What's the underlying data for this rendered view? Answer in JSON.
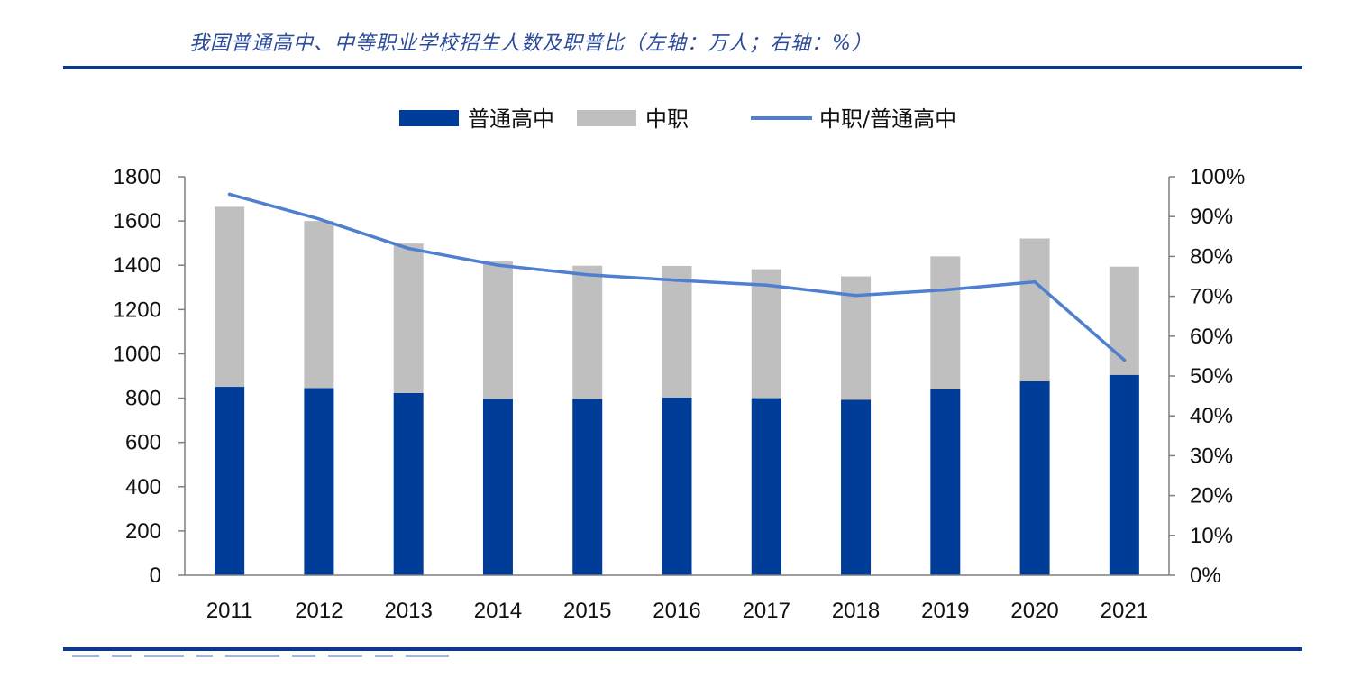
{
  "chart_data": {
    "type": "bar",
    "title": "我国普通高中、中等职业学校招生人数及职普比（左轴：万人；右轴：%）",
    "categories": [
      "2011",
      "2012",
      "2013",
      "2014",
      "2015",
      "2016",
      "2017",
      "2018",
      "2019",
      "2020",
      "2021"
    ],
    "series": [
      {
        "name": "普通高中",
        "kind": "bar",
        "stacked": true,
        "axis": "left",
        "color": "#003d99",
        "values": [
          851,
          845,
          823,
          797,
          797,
          803,
          800,
          793,
          839,
          876,
          905
        ]
      },
      {
        "name": "中职",
        "kind": "bar",
        "stacked": true,
        "axis": "left",
        "color": "#bfbfbf",
        "values": [
          813,
          755,
          675,
          620,
          601,
          594,
          582,
          557,
          601,
          645,
          489
        ]
      },
      {
        "name": "中职/普通高中",
        "kind": "line",
        "axis": "right",
        "color": "#4f7fcf",
        "values": [
          95.6,
          89.4,
          82.0,
          77.8,
          75.4,
          74.0,
          72.8,
          70.2,
          71.6,
          73.6,
          54.0
        ]
      }
    ],
    "y_left": {
      "min": 0,
      "max": 1800,
      "ticks": [
        "0",
        "200",
        "400",
        "600",
        "800",
        "1000",
        "1200",
        "1400",
        "1600",
        "1800"
      ]
    },
    "y_right": {
      "min": 0,
      "max": 100,
      "ticks": [
        "0%",
        "10%",
        "20%",
        "30%",
        "40%",
        "50%",
        "60%",
        "70%",
        "80%",
        "90%",
        "100%"
      ]
    },
    "legend_position": "top-center",
    "grid": false
  }
}
